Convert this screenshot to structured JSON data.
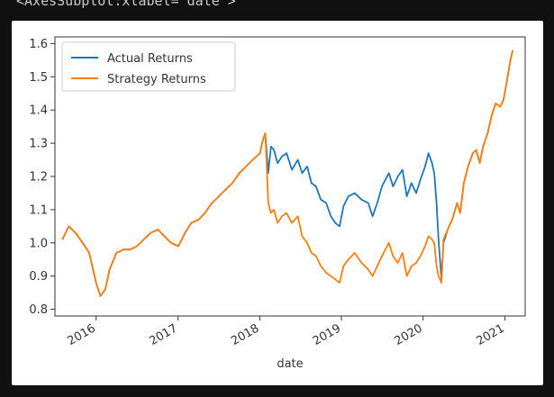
{
  "output_repr": "<AxesSubplot:xlabel='date'>",
  "chart_data": {
    "type": "line",
    "title": "",
    "xlabel": "date",
    "ylabel": "",
    "xlim": [
      "2015-07-01",
      "2021-04-01"
    ],
    "ylim": [
      0.78,
      1.62
    ],
    "x_ticks": [
      {
        "date": "2016-01-01",
        "label": "2016"
      },
      {
        "date": "2017-01-01",
        "label": "2017"
      },
      {
        "date": "2018-01-01",
        "label": "2018"
      },
      {
        "date": "2019-01-01",
        "label": "2019"
      },
      {
        "date": "2020-01-01",
        "label": "2020"
      },
      {
        "date": "2021-01-01",
        "label": "2021"
      }
    ],
    "y_ticks": [
      0.8,
      0.9,
      1.0,
      1.1,
      1.2,
      1.3,
      1.4,
      1.5,
      1.6
    ],
    "y_tick_labels": [
      "0.8",
      "0.9",
      "1.0",
      "1.1",
      "1.2",
      "1.3",
      "1.4",
      "1.5",
      "1.6"
    ],
    "grid": false,
    "legend_position": "upper-left",
    "series": [
      {
        "name": "Actual Returns",
        "color": "#1f77b4",
        "points": [
          [
            "2015-08-03",
            1.01
          ],
          [
            "2015-09-01",
            1.05
          ],
          [
            "2015-10-01",
            1.03
          ],
          [
            "2015-11-02",
            1.0
          ],
          [
            "2015-12-01",
            0.97
          ],
          [
            "2016-01-01",
            0.88
          ],
          [
            "2016-01-20",
            0.84
          ],
          [
            "2016-02-11",
            0.86
          ],
          [
            "2016-03-01",
            0.92
          ],
          [
            "2016-04-01",
            0.97
          ],
          [
            "2016-05-02",
            0.98
          ],
          [
            "2016-06-01",
            0.98
          ],
          [
            "2016-07-01",
            0.99
          ],
          [
            "2016-08-01",
            1.01
          ],
          [
            "2016-09-01",
            1.03
          ],
          [
            "2016-10-03",
            1.04
          ],
          [
            "2016-11-01",
            1.02
          ],
          [
            "2016-12-01",
            1.0
          ],
          [
            "2017-01-03",
            0.99
          ],
          [
            "2017-02-01",
            1.03
          ],
          [
            "2017-03-01",
            1.06
          ],
          [
            "2017-04-03",
            1.07
          ],
          [
            "2017-05-01",
            1.09
          ],
          [
            "2017-06-01",
            1.12
          ],
          [
            "2017-07-03",
            1.14
          ],
          [
            "2017-08-01",
            1.16
          ],
          [
            "2017-09-01",
            1.18
          ],
          [
            "2017-10-02",
            1.21
          ],
          [
            "2017-11-01",
            1.23
          ],
          [
            "2017-12-01",
            1.25
          ],
          [
            "2018-01-02",
            1.27
          ],
          [
            "2018-01-15",
            1.31
          ],
          [
            "2018-01-26",
            1.33
          ],
          [
            "2018-02-08",
            1.21
          ],
          [
            "2018-02-20",
            1.29
          ],
          [
            "2018-03-05",
            1.28
          ],
          [
            "2018-03-22",
            1.24
          ],
          [
            "2018-04-10",
            1.26
          ],
          [
            "2018-05-01",
            1.27
          ],
          [
            "2018-05-25",
            1.22
          ],
          [
            "2018-06-20",
            1.25
          ],
          [
            "2018-07-10",
            1.21
          ],
          [
            "2018-08-01",
            1.23
          ],
          [
            "2018-08-20",
            1.18
          ],
          [
            "2018-09-10",
            1.17
          ],
          [
            "2018-10-01",
            1.13
          ],
          [
            "2018-10-25",
            1.12
          ],
          [
            "2018-11-15",
            1.08
          ],
          [
            "2018-12-05",
            1.06
          ],
          [
            "2018-12-24",
            1.05
          ],
          [
            "2019-01-10",
            1.11
          ],
          [
            "2019-02-01",
            1.14
          ],
          [
            "2019-03-01",
            1.15
          ],
          [
            "2019-04-01",
            1.13
          ],
          [
            "2019-05-01",
            1.12
          ],
          [
            "2019-05-20",
            1.08
          ],
          [
            "2019-06-10",
            1.12
          ],
          [
            "2019-07-01",
            1.17
          ],
          [
            "2019-08-01",
            1.21
          ],
          [
            "2019-08-20",
            1.17
          ],
          [
            "2019-09-10",
            1.2
          ],
          [
            "2019-10-01",
            1.22
          ],
          [
            "2019-10-20",
            1.14
          ],
          [
            "2019-11-10",
            1.18
          ],
          [
            "2019-12-01",
            1.15
          ],
          [
            "2019-12-20",
            1.19
          ],
          [
            "2020-01-10",
            1.23
          ],
          [
            "2020-01-25",
            1.27
          ],
          [
            "2020-02-10",
            1.24
          ],
          [
            "2020-02-20",
            1.21
          ],
          [
            "2020-03-01",
            1.12
          ],
          [
            "2020-03-10",
            1.01
          ],
          [
            "2020-03-23",
            0.89
          ],
          [
            "2020-04-01",
            1.0
          ],
          [
            "2020-04-20",
            1.04
          ],
          [
            "2020-05-10",
            1.07
          ],
          [
            "2020-06-01",
            1.12
          ],
          [
            "2020-06-15",
            1.09
          ],
          [
            "2020-07-01",
            1.18
          ],
          [
            "2020-07-20",
            1.23
          ],
          [
            "2020-08-10",
            1.27
          ],
          [
            "2020-08-25",
            1.28
          ],
          [
            "2020-09-10",
            1.24
          ],
          [
            "2020-09-25",
            1.29
          ],
          [
            "2020-10-15",
            1.33
          ],
          [
            "2020-11-01",
            1.38
          ],
          [
            "2020-11-20",
            1.42
          ],
          [
            "2020-12-10",
            1.41
          ],
          [
            "2020-12-25",
            1.43
          ],
          [
            "2021-01-10",
            1.49
          ],
          [
            "2021-01-25",
            1.55
          ],
          [
            "2021-02-05",
            1.58
          ]
        ]
      },
      {
        "name": "Strategy Returns",
        "color": "#ff7f0e",
        "points": [
          [
            "2015-08-03",
            1.01
          ],
          [
            "2015-09-01",
            1.05
          ],
          [
            "2015-10-01",
            1.03
          ],
          [
            "2015-11-02",
            1.0
          ],
          [
            "2015-12-01",
            0.97
          ],
          [
            "2016-01-01",
            0.88
          ],
          [
            "2016-01-20",
            0.84
          ],
          [
            "2016-02-11",
            0.86
          ],
          [
            "2016-03-01",
            0.92
          ],
          [
            "2016-04-01",
            0.97
          ],
          [
            "2016-05-02",
            0.98
          ],
          [
            "2016-06-01",
            0.98
          ],
          [
            "2016-07-01",
            0.99
          ],
          [
            "2016-08-01",
            1.01
          ],
          [
            "2016-09-01",
            1.03
          ],
          [
            "2016-10-03",
            1.04
          ],
          [
            "2016-11-01",
            1.02
          ],
          [
            "2016-12-01",
            1.0
          ],
          [
            "2017-01-03",
            0.99
          ],
          [
            "2017-02-01",
            1.03
          ],
          [
            "2017-03-01",
            1.06
          ],
          [
            "2017-04-03",
            1.07
          ],
          [
            "2017-05-01",
            1.09
          ],
          [
            "2017-06-01",
            1.12
          ],
          [
            "2017-07-03",
            1.14
          ],
          [
            "2017-08-01",
            1.16
          ],
          [
            "2017-09-01",
            1.18
          ],
          [
            "2017-10-02",
            1.21
          ],
          [
            "2017-11-01",
            1.23
          ],
          [
            "2017-12-01",
            1.25
          ],
          [
            "2018-01-02",
            1.27
          ],
          [
            "2018-01-15",
            1.31
          ],
          [
            "2018-01-26",
            1.33
          ],
          [
            "2018-02-08",
            1.12
          ],
          [
            "2018-02-20",
            1.09
          ],
          [
            "2018-03-05",
            1.1
          ],
          [
            "2018-03-22",
            1.06
          ],
          [
            "2018-04-10",
            1.08
          ],
          [
            "2018-05-01",
            1.09
          ],
          [
            "2018-05-25",
            1.06
          ],
          [
            "2018-06-20",
            1.08
          ],
          [
            "2018-07-10",
            1.02
          ],
          [
            "2018-08-01",
            1.0
          ],
          [
            "2018-08-20",
            0.97
          ],
          [
            "2018-09-10",
            0.96
          ],
          [
            "2018-10-01",
            0.93
          ],
          [
            "2018-10-25",
            0.91
          ],
          [
            "2018-11-15",
            0.9
          ],
          [
            "2018-12-05",
            0.89
          ],
          [
            "2018-12-24",
            0.88
          ],
          [
            "2019-01-10",
            0.93
          ],
          [
            "2019-02-01",
            0.95
          ],
          [
            "2019-03-01",
            0.97
          ],
          [
            "2019-04-01",
            0.94
          ],
          [
            "2019-05-01",
            0.92
          ],
          [
            "2019-05-20",
            0.9
          ],
          [
            "2019-06-10",
            0.93
          ],
          [
            "2019-07-01",
            0.96
          ],
          [
            "2019-08-01",
            1.0
          ],
          [
            "2019-08-20",
            0.96
          ],
          [
            "2019-09-10",
            0.94
          ],
          [
            "2019-10-01",
            0.97
          ],
          [
            "2019-10-20",
            0.9
          ],
          [
            "2019-11-10",
            0.93
          ],
          [
            "2019-12-01",
            0.94
          ],
          [
            "2019-12-20",
            0.96
          ],
          [
            "2020-01-10",
            0.99
          ],
          [
            "2020-01-25",
            1.02
          ],
          [
            "2020-02-10",
            1.01
          ],
          [
            "2020-02-20",
            1.0
          ],
          [
            "2020-03-01",
            0.93
          ],
          [
            "2020-03-10",
            0.9
          ],
          [
            "2020-03-23",
            0.88
          ],
          [
            "2020-04-01",
            1.01
          ],
          [
            "2020-04-20",
            1.04
          ],
          [
            "2020-05-10",
            1.07
          ],
          [
            "2020-06-01",
            1.12
          ],
          [
            "2020-06-15",
            1.09
          ],
          [
            "2020-07-01",
            1.18
          ],
          [
            "2020-07-20",
            1.23
          ],
          [
            "2020-08-10",
            1.27
          ],
          [
            "2020-08-25",
            1.28
          ],
          [
            "2020-09-10",
            1.24
          ],
          [
            "2020-09-25",
            1.29
          ],
          [
            "2020-10-15",
            1.33
          ],
          [
            "2020-11-01",
            1.38
          ],
          [
            "2020-11-20",
            1.42
          ],
          [
            "2020-12-10",
            1.41
          ],
          [
            "2020-12-25",
            1.43
          ],
          [
            "2021-01-10",
            1.49
          ],
          [
            "2021-01-25",
            1.55
          ],
          [
            "2021-02-05",
            1.58
          ]
        ]
      }
    ]
  }
}
